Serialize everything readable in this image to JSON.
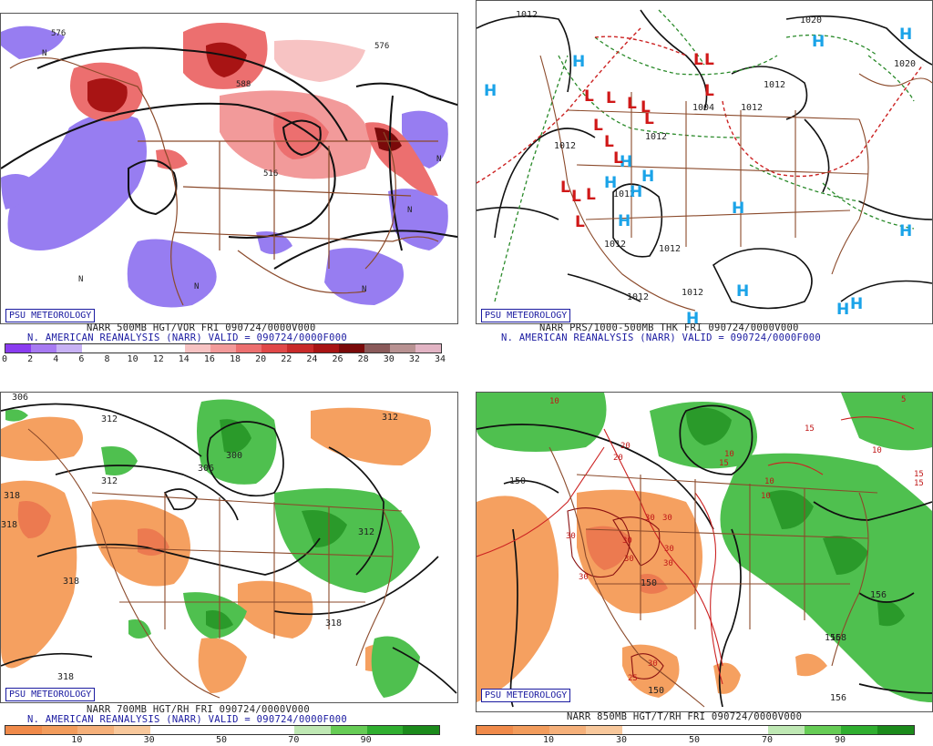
{
  "panels": [
    {
      "badge": "PSU METEOROLOGY",
      "title_line1": "NARR 500MB HGT/VOR FRI 090724/0000V000",
      "title_line2": "N. AMERICAN REANALYSIS (NARR) VALID = 090724/0000F000",
      "colorbar": {
        "colors": [
          "#8a3cf0",
          "#a77af2",
          "#c8b2f5",
          "#ffffff",
          "#ffffff",
          "#ffffff",
          "#ffffff",
          "#f7c3c3",
          "#f29a9a",
          "#ec6f6f",
          "#e04848",
          "#c82a2a",
          "#a81414",
          "#7a0a0a",
          "#8a5a5a",
          "#b89292",
          "#e2b4c4"
        ],
        "labels": [
          "0",
          "2",
          "4",
          "6",
          "8",
          "10",
          "12",
          "14",
          "16",
          "18",
          "20",
          "22",
          "24",
          "26",
          "28",
          "30",
          "32",
          "34"
        ]
      },
      "contour_labels": [
        "576",
        "576",
        "588",
        "516",
        "N",
        "N",
        "N",
        "N",
        "N",
        "N"
      ]
    },
    {
      "badge": "PSU METEOROLOGY",
      "title_line1": "NARR PRS/1000-500MB THK FRI 090724/0000V000",
      "title_line2": "N. AMERICAN REANALYSIS (NARR) VALID = 090724/0000F000",
      "contour_labels": [
        "1012",
        "1020",
        "1020",
        "1012",
        "1004",
        "1012",
        "1012",
        "1012",
        "1012",
        "1012",
        "1012",
        "1012",
        "1012"
      ],
      "high_symbol": "H",
      "low_symbol": "L"
    },
    {
      "badge": "PSU METEOROLOGY",
      "title_line1": "NARR 700MB HGT/RH FRI 090724/0000V000",
      "title_line2": "N. AMERICAN REANALYSIS (NARR) VALID = 090724/0000F000",
      "colorbar": {
        "colors": [
          "#f08a4a",
          "#f29c5c",
          "#f5b07a",
          "#f8c89c",
          "#ffffff",
          "#ffffff",
          "#ffffff",
          "#ffffff",
          "#bfe8b4",
          "#66cc55",
          "#2fae2f",
          "#1b8a1b"
        ],
        "labels": [
          "10",
          "30",
          "50",
          "70",
          "90"
        ]
      },
      "contour_labels": [
        "306",
        "312",
        "312",
        "300",
        "306",
        "318",
        "318",
        "312",
        "318",
        "318",
        "318",
        "312"
      ]
    },
    {
      "badge": "PSU METEOROLOGY",
      "title_line1": "NARR 850MB HGT/T/RH FRI 090724/0000V000",
      "colorbar": {
        "colors": [
          "#f08a4a",
          "#f29c5c",
          "#f5b07a",
          "#f8c89c",
          "#ffffff",
          "#ffffff",
          "#ffffff",
          "#ffffff",
          "#bfe8b4",
          "#66cc55",
          "#2fae2f",
          "#1b8a1b"
        ],
        "labels": [
          "10",
          "30",
          "50",
          "70",
          "90"
        ]
      },
      "contour_labels": [
        "10",
        "20",
        "20",
        "15",
        "15",
        "10",
        "10",
        "10",
        "10",
        "5",
        "15",
        "15",
        "30",
        "30",
        "30",
        "30",
        "30",
        "30",
        "30",
        "30",
        "30",
        "25",
        "150",
        "150",
        "150",
        "156",
        "156",
        "156",
        "158"
      ]
    }
  ]
}
